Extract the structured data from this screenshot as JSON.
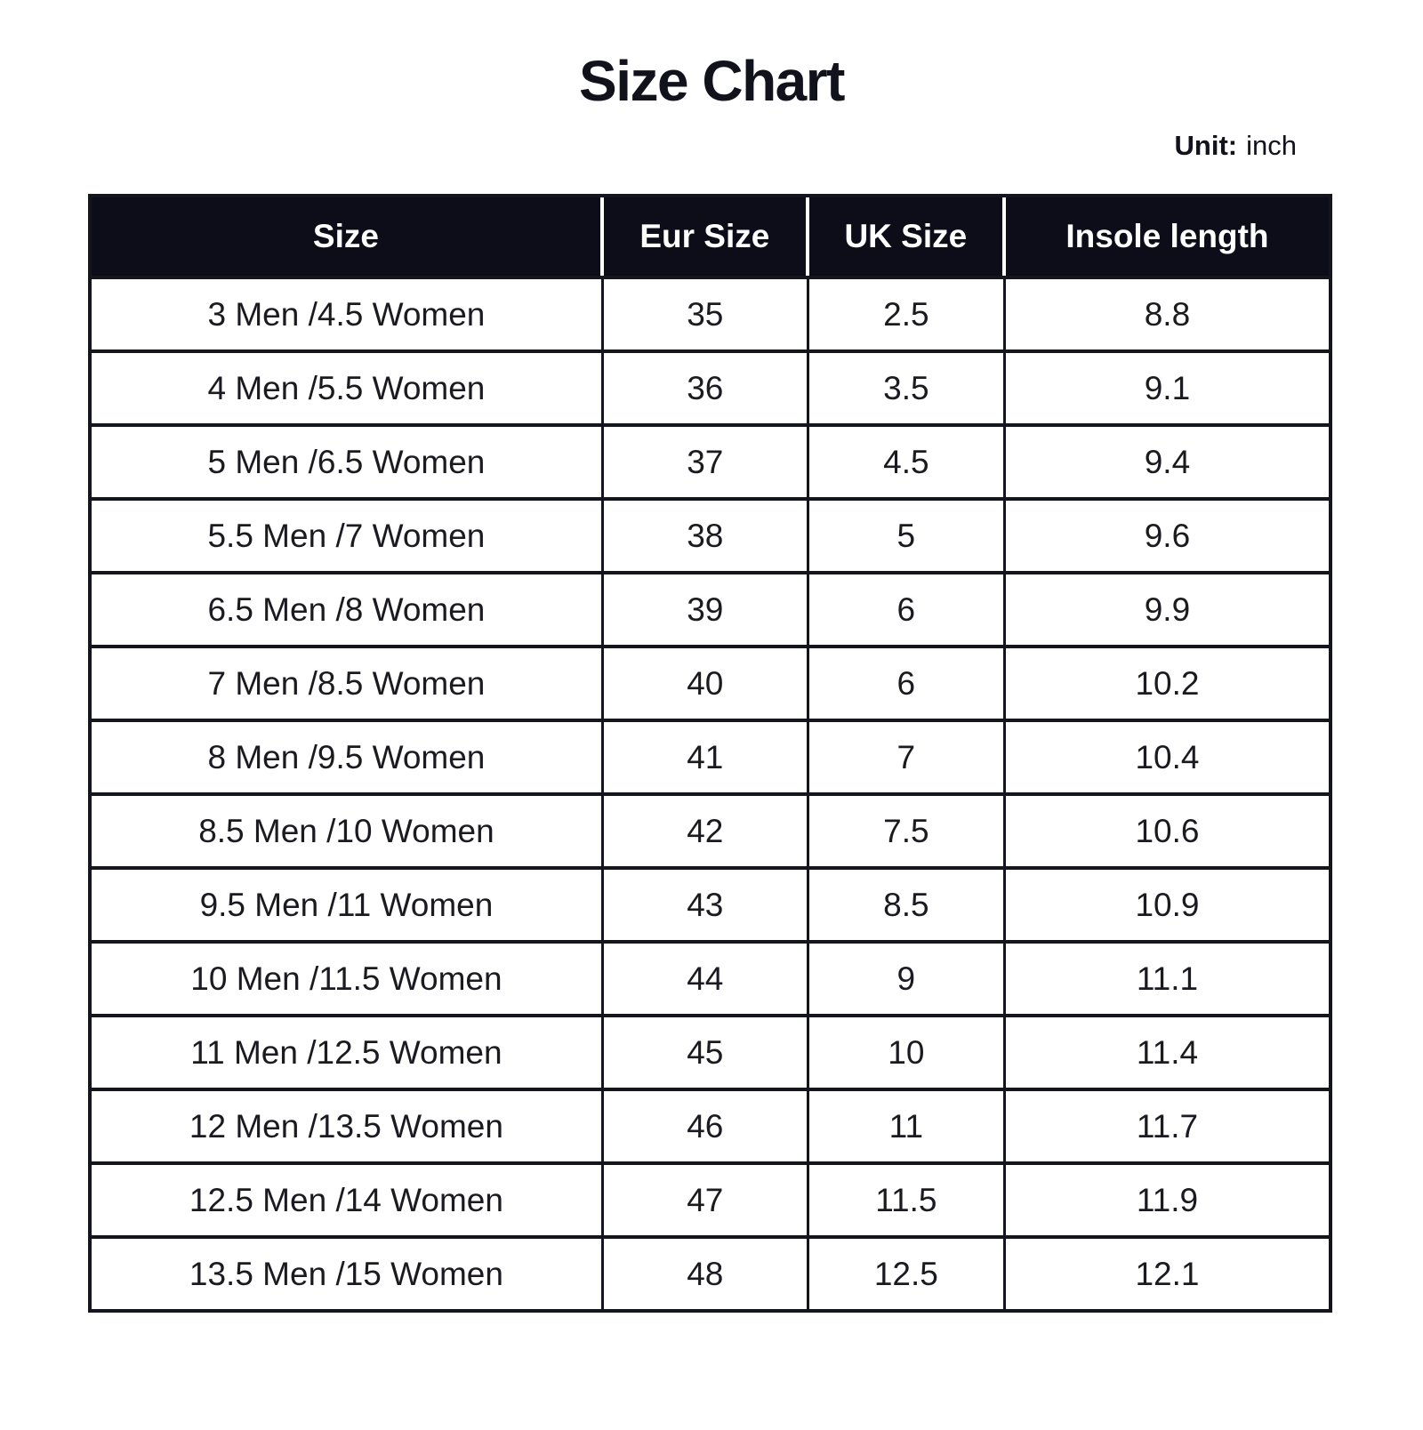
{
  "page": {
    "title": "Size Chart",
    "unit_label": "Unit:",
    "unit_value": "inch"
  },
  "colors": {
    "header_bg": "#0d0d19",
    "header_text": "#ffffff",
    "border": "#15151e",
    "body_text": "#1a1a20",
    "title_text": "#12121c",
    "page_bg": "#ffffff"
  },
  "chart_data": {
    "type": "table",
    "title": "Size Chart",
    "unit": "inch",
    "columns": [
      "Size",
      "Eur Size",
      "UK Size",
      "Insole length"
    ],
    "rows": [
      [
        "3 Men /4.5 Women",
        "35",
        "2.5",
        "8.8"
      ],
      [
        "4 Men /5.5 Women",
        "36",
        "3.5",
        "9.1"
      ],
      [
        "5 Men /6.5 Women",
        "37",
        "4.5",
        "9.4"
      ],
      [
        "5.5 Men /7 Women",
        "38",
        "5",
        "9.6"
      ],
      [
        "6.5 Men /8 Women",
        "39",
        "6",
        "9.9"
      ],
      [
        "7 Men /8.5 Women",
        "40",
        "6",
        "10.2"
      ],
      [
        "8 Men /9.5 Women",
        "41",
        "7",
        "10.4"
      ],
      [
        "8.5 Men /10 Women",
        "42",
        "7.5",
        "10.6"
      ],
      [
        "9.5 Men /11 Women",
        "43",
        "8.5",
        "10.9"
      ],
      [
        "10 Men /11.5 Women",
        "44",
        "9",
        "11.1"
      ],
      [
        "11 Men /12.5 Women",
        "45",
        "10",
        "11.4"
      ],
      [
        "12 Men /13.5 Women",
        "46",
        "11",
        "11.7"
      ],
      [
        "12.5 Men /14 Women",
        "47",
        "11.5",
        "11.9"
      ],
      [
        "13.5 Men /15 Women",
        "48",
        "12.5",
        "12.1"
      ]
    ]
  }
}
